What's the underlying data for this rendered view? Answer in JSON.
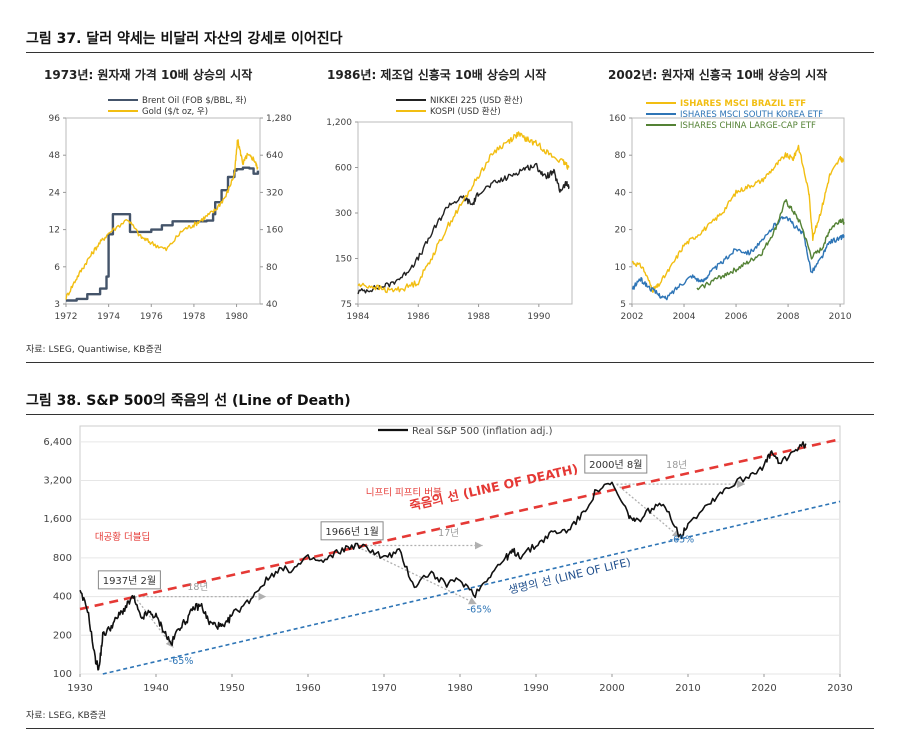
{
  "figure37": {
    "title": "그림 37. 달러 약세는 비달러 자산의 강세로 이어진다",
    "source": "자료: LSEG, Quantiwise, KB증권"
  },
  "figure38": {
    "title": "그림 38. S&P 500의 죽음의 선 (Line of Death)",
    "source": "자료: LSEG, KB증권"
  },
  "chart_data": [
    {
      "type": "line",
      "title": "1973년: 원자재 가격 10배 상승의 시작",
      "x_ticks": [
        "1972",
        "1974",
        "1976",
        "1978",
        "1980"
      ],
      "xlim": [
        1972,
        1981.1
      ],
      "y_left": {
        "ticks": [
          "3",
          "6",
          "12",
          "24",
          "48",
          "96"
        ],
        "lim": [
          3,
          96
        ],
        "scale": "log"
      },
      "y_right": {
        "ticks": [
          "40",
          "80",
          "160",
          "320",
          "640",
          "1,280"
        ],
        "lim": [
          40,
          1280
        ],
        "scale": "log"
      },
      "series": [
        {
          "name": "Brent Oil (FOB $/BBL, 좌)",
          "color": "#44546a",
          "axis": "left",
          "shape": "step",
          "x": [
            1972.0,
            1972.5,
            1973.0,
            1973.6,
            1973.9,
            1974.0,
            1974.2,
            1975.0,
            1976.0,
            1976.5,
            1977.0,
            1978.0,
            1978.6,
            1978.9,
            1979.0,
            1979.3,
            1979.6,
            1979.9,
            1980.0,
            1980.3,
            1980.6,
            1980.8,
            1981.0
          ],
          "y": [
            3.2,
            3.3,
            3.6,
            4.0,
            5.0,
            11.0,
            16.0,
            11.5,
            12.0,
            13.0,
            14.0,
            14.0,
            14.2,
            16.0,
            20.0,
            25.0,
            32.0,
            36.0,
            37.0,
            38.0,
            37.5,
            34.0,
            36.0
          ]
        },
        {
          "name": "Gold ($/t oz, 우)",
          "color": "#f2be12",
          "axis": "right",
          "x": [
            1972.0,
            1972.5,
            1973.0,
            1973.5,
            1974.0,
            1974.9,
            1975.5,
            1976.0,
            1976.7,
            1977.5,
            1978.0,
            1978.5,
            1979.0,
            1979.5,
            1979.9,
            1980.05,
            1980.3,
            1980.5,
            1980.8,
            1981.0
          ],
          "y": [
            45,
            65,
            90,
            120,
            150,
            195,
            140,
            125,
            110,
            160,
            175,
            200,
            230,
            300,
            450,
            850,
            550,
            640,
            600,
            500
          ]
        }
      ]
    },
    {
      "type": "line",
      "title": "1986년: 제조업 신흥국 10배 상승의 시작",
      "x_ticks": [
        "1984",
        "1986",
        "1988",
        "1990"
      ],
      "xlim": [
        1984,
        1991.1
      ],
      "y_left": {
        "ticks": [
          "75",
          "150",
          "300",
          "600",
          "1,200"
        ],
        "lim": [
          75,
          1200
        ],
        "scale": "log"
      },
      "series": [
        {
          "name": "NIKKEI 225 (USD 환산)",
          "color": "#222222",
          "x": [
            1984.0,
            1984.5,
            1985.0,
            1985.5,
            1986.0,
            1986.5,
            1987.0,
            1987.5,
            1987.8,
            1988.0,
            1988.5,
            1989.0,
            1989.5,
            1989.9,
            1990.2,
            1990.5,
            1990.7,
            1990.9,
            1991.0
          ],
          "y": [
            90,
            95,
            100,
            115,
            150,
            230,
            340,
            380,
            340,
            410,
            470,
            520,
            590,
            620,
            520,
            560,
            420,
            470,
            450
          ]
        },
        {
          "name": "KOSPI (USD 환산)",
          "color": "#f2be12",
          "x": [
            1984.0,
            1984.5,
            1985.0,
            1985.5,
            1986.0,
            1986.5,
            1987.0,
            1987.5,
            1988.0,
            1988.5,
            1989.0,
            1989.3,
            1989.6,
            1990.0,
            1990.4,
            1990.8,
            1991.0
          ],
          "y": [
            100,
            98,
            92,
            95,
            105,
            160,
            250,
            360,
            530,
            760,
            900,
            1000,
            920,
            850,
            720,
            650,
            600
          ]
        }
      ]
    },
    {
      "type": "line",
      "title": "2002년: 원자재 신흥국 10배 상승의 시작",
      "x_ticks": [
        "2002",
        "2004",
        "2006",
        "2008",
        "2010"
      ],
      "xlim": [
        2002,
        2010.15
      ],
      "y_left": {
        "ticks": [
          "5",
          "10",
          "20",
          "40",
          "80",
          "160"
        ],
        "lim": [
          5,
          160
        ],
        "scale": "log"
      },
      "series": [
        {
          "name": "ISHARES MSCI BRAZIL ETF",
          "color": "#f2be12",
          "x": [
            2002.0,
            2002.4,
            2002.8,
            2003.0,
            2003.5,
            2004.0,
            2004.5,
            2005.0,
            2005.5,
            2006.0,
            2006.5,
            2007.0,
            2007.5,
            2007.9,
            2008.2,
            2008.4,
            2008.8,
            2008.95,
            2009.3,
            2009.6,
            2010.0,
            2010.15
          ],
          "y": [
            11,
            10,
            6.5,
            7,
            10,
            15,
            18,
            22,
            28,
            40,
            45,
            50,
            65,
            80,
            75,
            95,
            40,
            17,
            30,
            55,
            75,
            72
          ]
        },
        {
          "name": "ISHARES MSCI SOUTH KOREA ETF",
          "color": "#2e75b6",
          "x": [
            2002.0,
            2002.3,
            2002.6,
            2003.0,
            2003.3,
            2003.8,
            2004.3,
            2004.7,
            2005.0,
            2005.5,
            2006.0,
            2006.5,
            2007.0,
            2007.5,
            2007.9,
            2008.2,
            2008.6,
            2008.9,
            2009.3,
            2009.6,
            2010.0,
            2010.15
          ],
          "y": [
            6.5,
            8,
            7,
            6,
            5.5,
            7,
            8.5,
            7.5,
            9,
            11,
            14,
            13,
            16,
            22,
            26,
            22,
            18,
            9,
            12,
            16,
            17,
            18
          ]
        },
        {
          "name": "ISHARES CHINA LARGE-CAP ETF",
          "color": "#548235",
          "x": [
            2004.5,
            2005.0,
            2005.5,
            2006.0,
            2006.5,
            2007.0,
            2007.5,
            2007.9,
            2008.2,
            2008.5,
            2008.9,
            2009.3,
            2009.6,
            2010.0,
            2010.15
          ],
          "y": [
            6.5,
            7.5,
            8.5,
            9.5,
            11,
            13,
            20,
            34,
            28,
            22,
            12,
            14,
            20,
            24,
            23
          ]
        }
      ]
    },
    {
      "type": "line",
      "title": "",
      "x_ticks": [
        "1930",
        "1940",
        "1950",
        "1960",
        "1970",
        "1980",
        "1990",
        "2000",
        "2010",
        "2020",
        "2030"
      ],
      "xlim": [
        1930,
        2030
      ],
      "y_left": {
        "ticks": [
          "100",
          "200",
          "400",
          "800",
          "1,600",
          "3,200",
          "6,400"
        ],
        "lim": [
          100,
          8500
        ],
        "scale": "log"
      },
      "series": [
        {
          "name": "Real S&P 500 (inflation adj.)",
          "color": "#111111",
          "x": [
            1930,
            1931,
            1932,
            1932.5,
            1933,
            1934,
            1935,
            1936,
            1937,
            1938,
            1939,
            1940,
            1941,
            1942,
            1943,
            1944,
            1945,
            1946,
            1947,
            1948,
            1949,
            1950,
            1952,
            1954,
            1956,
            1958,
            1960,
            1962,
            1964,
            1966,
            1968,
            1970,
            1972,
            1974,
            1976,
            1978,
            1980,
            1982,
            1984,
            1986,
            1987,
            1988,
            1990,
            1992,
            1994,
            1996,
            1998,
            2000,
            2002,
            2003,
            2005,
            2007,
            2009,
            2010,
            2013,
            2015,
            2018,
            2020,
            2021,
            2022,
            2024,
            2025.5
          ],
          "y": [
            430,
            320,
            130,
            110,
            200,
            230,
            280,
            330,
            400,
            270,
            300,
            280,
            220,
            170,
            230,
            260,
            330,
            340,
            250,
            240,
            230,
            290,
            360,
            500,
            650,
            650,
            800,
            740,
            900,
            1000,
            950,
            800,
            900,
            480,
            620,
            500,
            540,
            420,
            600,
            800,
            900,
            830,
            1000,
            1250,
            1300,
            1700,
            2700,
            3000,
            1800,
            1500,
            1900,
            2100,
            1150,
            1500,
            2200,
            2800,
            3500,
            4200,
            5300,
            4300,
            5500,
            6200
          ]
        }
      ],
      "line_of_death": {
        "label": "죽음의 선 (LINE OF DEATH)",
        "color": "#e53935",
        "x": [
          1930,
          2030
        ],
        "y": [
          320,
          6700
        ]
      },
      "line_of_life": {
        "label": "생명의 선 (LINE OF LIFE)",
        "color": "#2e75b6",
        "x": [
          1933,
          2030
        ],
        "y": [
          100,
          2200
        ]
      },
      "annotations": [
        {
          "text": "대공황 더블딥",
          "color": "#e53935",
          "x": 1935.6,
          "y": 1100
        },
        {
          "text": "니프티 피프티 버블",
          "color": "#e53935",
          "x": 1972.6,
          "y": 2450
        },
        {
          "text": "1937년 2월",
          "boxed": true,
          "x": 1936.5,
          "y": 540
        },
        {
          "text": "1966년 1월",
          "boxed": true,
          "x": 1965.8,
          "y": 1300
        },
        {
          "text": "2000년 8월",
          "boxed": true,
          "x": 2000.5,
          "y": 4300
        },
        {
          "text": "18년",
          "color": "#999999",
          "x": 1945.5,
          "y": 450
        },
        {
          "text": "17년",
          "color": "#999999",
          "x": 1978.5,
          "y": 1180
        },
        {
          "text": "18년",
          "color": "#999999",
          "x": 2008.5,
          "y": 4000
        },
        {
          "text": "-65%",
          "color": "#2e75b6",
          "x": 1943.3,
          "y": 120
        },
        {
          "text": "-65%",
          "color": "#2e75b6",
          "x": 1982.5,
          "y": 300
        },
        {
          "text": "-65%",
          "color": "#2e75b6",
          "x": 2009.2,
          "y": 1050
        }
      ],
      "projections": [
        {
          "x": [
            1937.2,
            1954.5
          ],
          "y": [
            400,
            400
          ]
        },
        {
          "x": [
            1966.1,
            1983.0
          ],
          "y": [
            1000,
            1000
          ]
        },
        {
          "x": [
            2000.6,
            2017.5
          ],
          "y": [
            3000,
            3000
          ]
        },
        {
          "x": [
            1937.2,
            1942.3
          ],
          "y": [
            400,
            160
          ]
        },
        {
          "x": [
            1966.1,
            1982.2
          ],
          "y": [
            1000,
            350
          ]
        },
        {
          "x": [
            2000.6,
            2009.0
          ],
          "y": [
            3000,
            1150
          ]
        }
      ]
    }
  ]
}
